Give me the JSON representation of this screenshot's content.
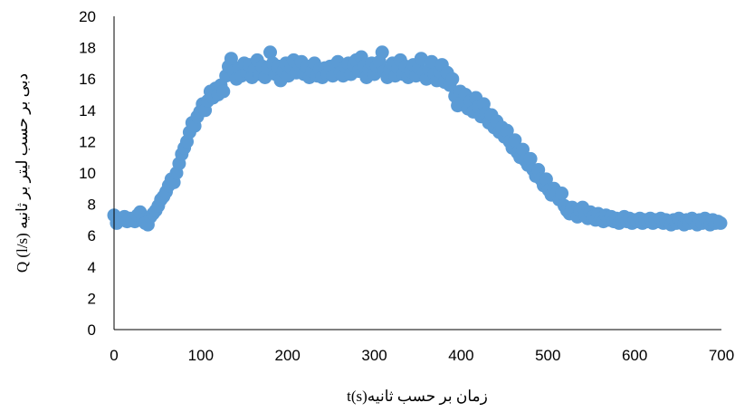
{
  "chart_data": {
    "type": "scatter",
    "title": "",
    "xlabel": "t(s)زمان بر حسب ثانیه",
    "ylabel": "دبی بر حسب لیتر بر ثانیه   Q (l/s)",
    "xlim": [
      0,
      700
    ],
    "ylim": [
      0,
      20
    ],
    "x_ticks": [
      "0",
      "100",
      "200",
      "300",
      "400",
      "500",
      "600",
      "700"
    ],
    "y_ticks": [
      "0",
      "2",
      "4",
      "6",
      "8",
      "10",
      "12",
      "14",
      "16",
      "18",
      "20"
    ],
    "grid": false,
    "legend": "none",
    "marker_color": "#5B9BD5",
    "series": [
      {
        "values": [
          [
            0,
            7.3
          ],
          [
            3,
            6.8
          ],
          [
            6,
            7.1
          ],
          [
            9,
            7.0
          ],
          [
            12,
            7.2
          ],
          [
            15,
            6.9
          ],
          [
            18,
            7.1
          ],
          [
            21,
            7.0
          ],
          [
            24,
            6.9
          ],
          [
            27,
            7.3
          ],
          [
            30,
            7.5
          ],
          [
            33,
            7.0
          ],
          [
            36,
            6.8
          ],
          [
            39,
            6.7
          ],
          [
            42,
            7.2
          ],
          [
            45,
            7.4
          ],
          [
            48,
            7.6
          ],
          [
            51,
            7.9
          ],
          [
            54,
            8.3
          ],
          [
            57,
            8.5
          ],
          [
            60,
            8.8
          ],
          [
            63,
            9.2
          ],
          [
            66,
            9.6
          ],
          [
            69,
            9.4
          ],
          [
            72,
            10.0
          ],
          [
            75,
            10.6
          ],
          [
            78,
            11.2
          ],
          [
            81,
            11.6
          ],
          [
            84,
            12.0
          ],
          [
            87,
            12.6
          ],
          [
            90,
            13.2
          ],
          [
            93,
            13.0
          ],
          [
            96,
            13.6
          ],
          [
            99,
            13.9
          ],
          [
            102,
            14.4
          ],
          [
            105,
            14.0
          ],
          [
            108,
            14.6
          ],
          [
            111,
            15.2
          ],
          [
            114,
            14.8
          ],
          [
            117,
            15.4
          ],
          [
            120,
            15.0
          ],
          [
            123,
            15.6
          ],
          [
            126,
            15.2
          ],
          [
            129,
            16.2
          ],
          [
            132,
            16.8
          ],
          [
            135,
            17.3
          ],
          [
            138,
            16.5
          ],
          [
            141,
            16.0
          ],
          [
            144,
            16.7
          ],
          [
            147,
            16.2
          ],
          [
            150,
            17.0
          ],
          [
            153,
            16.4
          ],
          [
            156,
            16.9
          ],
          [
            159,
            16.1
          ],
          [
            162,
            16.6
          ],
          [
            165,
            17.2
          ],
          [
            168,
            16.3
          ],
          [
            171,
            16.8
          ],
          [
            174,
            16.1
          ],
          [
            177,
            16.7
          ],
          [
            180,
            17.7
          ],
          [
            183,
            17.0
          ],
          [
            186,
            16.3
          ],
          [
            189,
            16.8
          ],
          [
            192,
            15.9
          ],
          [
            195,
            16.5
          ],
          [
            198,
            17.0
          ],
          [
            201,
            16.2
          ],
          [
            204,
            16.7
          ],
          [
            207,
            17.2
          ],
          [
            210,
            16.4
          ],
          [
            213,
            16.9
          ],
          [
            216,
            17.1
          ],
          [
            219,
            16.3
          ],
          [
            222,
            16.8
          ],
          [
            225,
            16.1
          ],
          [
            228,
            16.5
          ],
          [
            231,
            17.0
          ],
          [
            234,
            16.2
          ],
          [
            237,
            16.6
          ],
          [
            240,
            16.1
          ],
          [
            243,
            16.7
          ],
          [
            246,
            16.3
          ],
          [
            249,
            16.8
          ],
          [
            252,
            16.2
          ],
          [
            255,
            16.9
          ],
          [
            258,
            17.1
          ],
          [
            261,
            16.4
          ],
          [
            264,
            16.2
          ],
          [
            267,
            16.8
          ],
          [
            270,
            17.0
          ],
          [
            273,
            16.3
          ],
          [
            276,
            16.9
          ],
          [
            279,
            17.2
          ],
          [
            282,
            16.5
          ],
          [
            285,
            17.4
          ],
          [
            288,
            16.8
          ],
          [
            291,
            16.1
          ],
          [
            294,
            16.6
          ],
          [
            297,
            17.0
          ],
          [
            300,
            16.3
          ],
          [
            303,
            16.8
          ],
          [
            306,
            17.1
          ],
          [
            309,
            17.7
          ],
          [
            312,
            16.5
          ],
          [
            315,
            16.1
          ],
          [
            318,
            16.6
          ],
          [
            321,
            17.0
          ],
          [
            324,
            16.2
          ],
          [
            327,
            16.7
          ],
          [
            330,
            17.2
          ],
          [
            333,
            16.3
          ],
          [
            336,
            16.8
          ],
          [
            339,
            16.1
          ],
          [
            342,
            16.5
          ],
          [
            345,
            16.9
          ],
          [
            348,
            16.2
          ],
          [
            351,
            16.7
          ],
          [
            354,
            17.3
          ],
          [
            357,
            16.4
          ],
          [
            360,
            16.0
          ],
          [
            363,
            16.6
          ],
          [
            366,
            17.1
          ],
          [
            369,
            16.3
          ],
          [
            372,
            15.9
          ],
          [
            375,
            16.5
          ],
          [
            378,
            16.9
          ],
          [
            381,
            15.8
          ],
          [
            384,
            16.4
          ],
          [
            387,
            15.6
          ],
          [
            390,
            16.0
          ],
          [
            393,
            14.9
          ],
          [
            396,
            14.3
          ],
          [
            399,
            15.2
          ],
          [
            402,
            14.5
          ],
          [
            405,
            15.0
          ],
          [
            408,
            14.1
          ],
          [
            411,
            14.6
          ],
          [
            414,
            13.9
          ],
          [
            417,
            14.8
          ],
          [
            420,
            14.2
          ],
          [
            423,
            13.6
          ],
          [
            426,
            14.4
          ],
          [
            429,
            13.8
          ],
          [
            432,
            13.2
          ],
          [
            435,
            13.7
          ],
          [
            438,
            12.9
          ],
          [
            441,
            13.3
          ],
          [
            444,
            12.6
          ],
          [
            447,
            12.9
          ],
          [
            450,
            12.3
          ],
          [
            453,
            12.7
          ],
          [
            456,
            12.0
          ],
          [
            459,
            11.6
          ],
          [
            462,
            12.1
          ],
          [
            465,
            11.3
          ],
          [
            468,
            11.0
          ],
          [
            471,
            11.5
          ],
          [
            474,
            10.8
          ],
          [
            477,
            10.5
          ],
          [
            480,
            10.9
          ],
          [
            483,
            10.2
          ],
          [
            486,
            9.8
          ],
          [
            489,
            10.2
          ],
          [
            492,
            9.6
          ],
          [
            495,
            9.2
          ],
          [
            498,
            9.6
          ],
          [
            501,
            8.9
          ],
          [
            504,
            8.6
          ],
          [
            507,
            9.0
          ],
          [
            510,
            8.7
          ],
          [
            513,
            8.3
          ],
          [
            516,
            8.7
          ],
          [
            519,
            7.9
          ],
          [
            522,
            7.6
          ],
          [
            525,
            7.4
          ],
          [
            528,
            7.8
          ],
          [
            531,
            7.5
          ],
          [
            534,
            7.2
          ],
          [
            537,
            7.6
          ],
          [
            540,
            7.8
          ],
          [
            543,
            7.3
          ],
          [
            546,
            7.1
          ],
          [
            549,
            7.5
          ],
          [
            552,
            7.2
          ],
          [
            555,
            7.0
          ],
          [
            558,
            7.4
          ],
          [
            561,
            7.1
          ],
          [
            564,
            6.9
          ],
          [
            567,
            7.3
          ],
          [
            570,
            7.0
          ],
          [
            573,
            7.2
          ],
          [
            576,
            6.9
          ],
          [
            579,
            7.1
          ],
          [
            582,
            6.8
          ],
          [
            585,
            7.0
          ],
          [
            588,
            7.2
          ],
          [
            591,
            6.9
          ],
          [
            594,
            7.1
          ],
          [
            597,
            6.8
          ],
          [
            600,
            7.0
          ],
          [
            603,
            6.9
          ],
          [
            606,
            7.1
          ],
          [
            609,
            6.8
          ],
          [
            612,
            7.0
          ],
          [
            615,
            6.9
          ],
          [
            618,
            7.1
          ],
          [
            621,
            6.8
          ],
          [
            624,
            7.0
          ],
          [
            627,
            6.9
          ],
          [
            630,
            7.1
          ],
          [
            633,
            6.8
          ],
          [
            636,
            7.0
          ],
          [
            639,
            6.9
          ],
          [
            642,
            6.7
          ],
          [
            645,
            7.0
          ],
          [
            648,
            6.8
          ],
          [
            651,
            7.1
          ],
          [
            654,
            6.9
          ],
          [
            657,
            6.7
          ],
          [
            660,
            7.0
          ],
          [
            663,
            6.8
          ],
          [
            666,
            7.1
          ],
          [
            669,
            6.9
          ],
          [
            672,
            6.7
          ],
          [
            675,
            7.0
          ],
          [
            678,
            6.8
          ],
          [
            681,
            7.1
          ],
          [
            684,
            6.9
          ],
          [
            687,
            6.7
          ],
          [
            690,
            7.0
          ],
          [
            693,
            6.8
          ],
          [
            696,
            6.9
          ],
          [
            699,
            6.8
          ]
        ]
      }
    ]
  }
}
